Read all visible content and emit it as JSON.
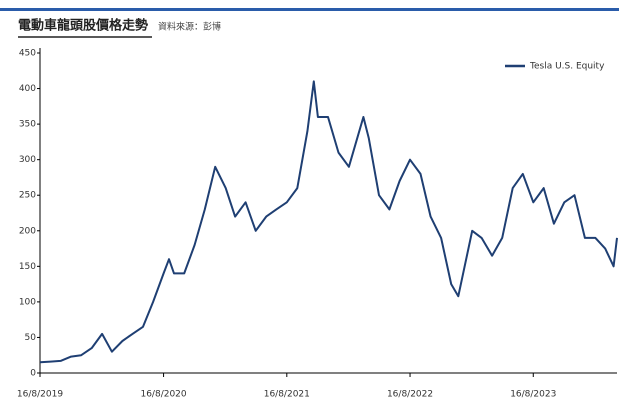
{
  "chart_data": {
    "type": "line",
    "title": "電動車龍頭股價格走勢",
    "subtitle": "資料來源：彭博",
    "x": [
      "2019-08-16",
      "2019-09-16",
      "2019-10-16",
      "2019-11-16",
      "2019-12-16",
      "2020-01-16",
      "2020-02-16",
      "2020-03-16",
      "2020-04-16",
      "2020-05-16",
      "2020-06-16",
      "2020-07-16",
      "2020-08-16",
      "2020-09-01",
      "2020-09-16",
      "2020-10-16",
      "2020-11-16",
      "2020-12-16",
      "2021-01-16",
      "2021-02-16",
      "2021-03-16",
      "2021-04-16",
      "2021-05-16",
      "2021-06-16",
      "2021-07-16",
      "2021-08-16",
      "2021-09-16",
      "2021-10-16",
      "2021-11-04",
      "2021-11-16",
      "2021-12-16",
      "2022-01-16",
      "2022-02-16",
      "2022-03-31",
      "2022-04-16",
      "2022-05-16",
      "2022-06-16",
      "2022-07-16",
      "2022-08-16",
      "2022-09-16",
      "2022-10-16",
      "2022-11-16",
      "2022-12-16",
      "2023-01-06",
      "2023-02-16",
      "2023-03-16",
      "2023-04-16",
      "2023-05-16",
      "2023-06-16",
      "2023-07-16",
      "2023-08-16",
      "2023-09-16",
      "2023-10-16",
      "2023-11-16",
      "2023-12-16",
      "2024-01-16",
      "2024-02-16",
      "2024-03-16",
      "2024-04-10",
      "2024-04-20"
    ],
    "series": [
      {
        "name": "Tesla U.S. Equity",
        "color": "#1f3f73",
        "values": [
          15,
          16,
          17,
          23,
          25,
          35,
          55,
          30,
          45,
          55,
          65,
          100,
          140,
          160,
          140,
          140,
          180,
          230,
          290,
          260,
          220,
          240,
          200,
          220,
          230,
          240,
          260,
          340,
          410,
          360,
          360,
          310,
          290,
          360,
          330,
          250,
          230,
          270,
          300,
          280,
          220,
          190,
          125,
          108,
          200,
          190,
          165,
          190,
          260,
          280,
          240,
          260,
          210,
          240,
          250,
          190,
          190,
          175,
          150,
          190
        ]
      }
    ],
    "xticks": [
      {
        "value": "2019-08-16",
        "label": "16/8/2019"
      },
      {
        "value": "2020-08-16",
        "label": "16/8/2020"
      },
      {
        "value": "2021-08-16",
        "label": "16/8/2021"
      },
      {
        "value": "2022-08-16",
        "label": "16/8/2022"
      },
      {
        "value": "2023-08-16",
        "label": "16/8/2023"
      }
    ],
    "xlim": [
      "2019-08-16",
      "2024-04-20"
    ],
    "ylim": [
      0,
      450
    ],
    "yticks": [
      0,
      50,
      100,
      150,
      200,
      250,
      300,
      350,
      400,
      450
    ],
    "grid": false,
    "legend": "top-right"
  }
}
